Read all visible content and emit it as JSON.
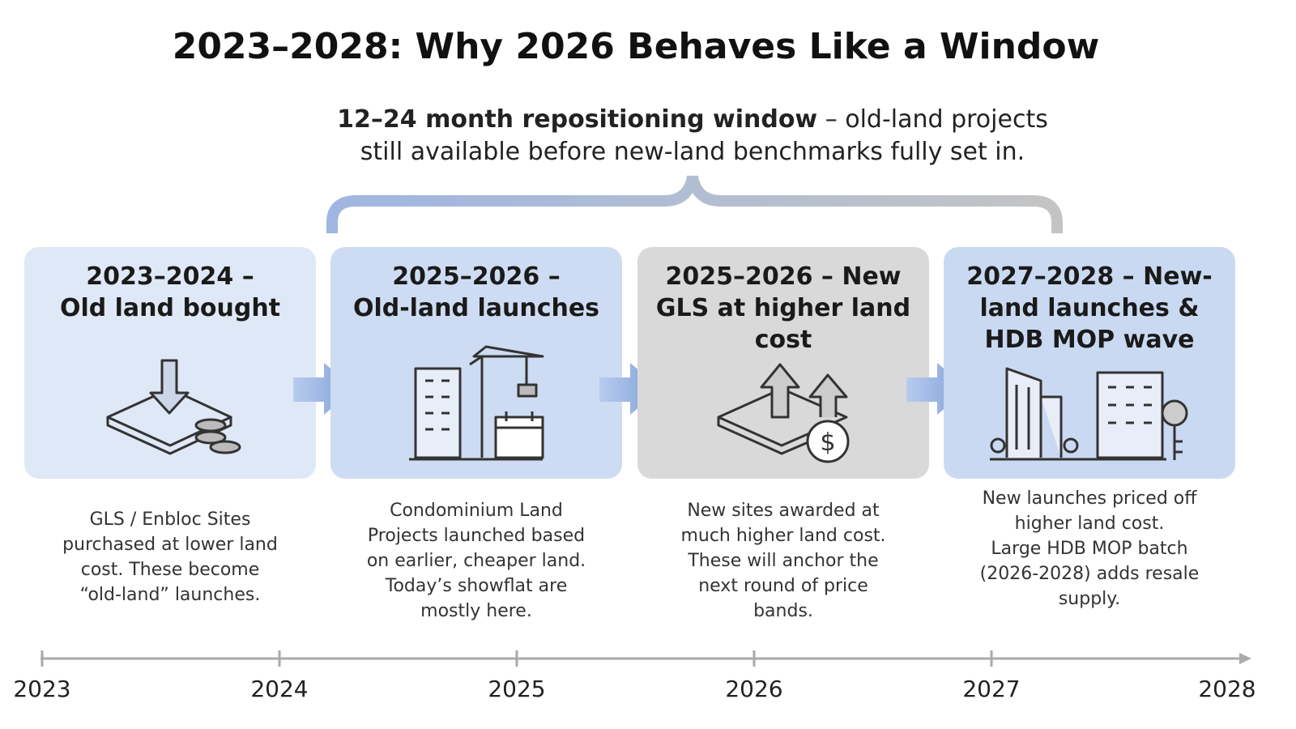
{
  "header": {
    "title": "2023–2028: Why 2026 Behaves Like a Window"
  },
  "callout": {
    "emphasis": "12–24 month repositioning window",
    "lines": [
      "– old-land projects",
      "still available before new-land benchmarks fully set in."
    ]
  },
  "stages": [
    {
      "title": [
        "2023–2024 –",
        "Old land bought"
      ],
      "description": [
        "GLS / Enbloc Sites",
        "purchased at lower land",
        "cost. These become",
        "“old-land” launches."
      ]
    },
    {
      "title": [
        "2025–2026 –",
        "Old-land launches"
      ],
      "description": [
        "Condominium Land",
        "Projects launched based",
        "on earlier, cheaper land.",
        "Today’s showflat are",
        "mostly here."
      ]
    },
    {
      "title": [
        "2025–2026 – New",
        "GLS at higher land",
        "cost"
      ],
      "description": [
        "New sites awarded at",
        "much higher land cost.",
        "These will anchor the",
        "next round of price",
        "bands."
      ]
    },
    {
      "title": [
        "2027–2028 – New-",
        "land launches &",
        "HDB MOP wave"
      ],
      "description": [
        "New launches priced off",
        "higher land cost.",
        "Large HDB MOP batch",
        "(2026-2028) adds resale",
        "supply."
      ]
    }
  ],
  "timeline": {
    "years": [
      "2023",
      "2024",
      "2025",
      "2026",
      "2027",
      "2028"
    ]
  }
}
